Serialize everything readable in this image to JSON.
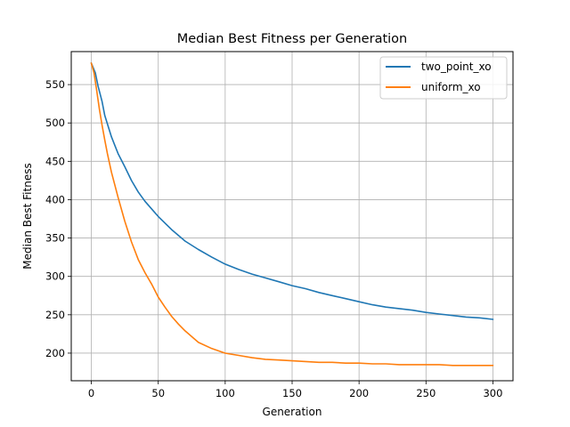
{
  "chart_data": {
    "type": "line",
    "title": "Median Best Fitness per Generation",
    "xlabel": "Generation",
    "ylabel": "Median Best Fitness",
    "xlim": [
      -15,
      315
    ],
    "ylim": [
      164,
      593
    ],
    "xticks": [
      0,
      50,
      100,
      150,
      200,
      250,
      300
    ],
    "yticks": [
      200,
      250,
      300,
      350,
      400,
      450,
      500,
      550
    ],
    "grid": true,
    "legend_position": "top-right",
    "series": [
      {
        "name": "two_point_xo",
        "color": "#1f77b4",
        "x": [
          0,
          3,
          5,
          8,
          10,
          15,
          20,
          25,
          30,
          35,
          40,
          45,
          50,
          60,
          70,
          80,
          90,
          100,
          110,
          120,
          130,
          140,
          150,
          160,
          170,
          180,
          190,
          200,
          210,
          220,
          230,
          240,
          250,
          260,
          270,
          280,
          290,
          300
        ],
        "y": [
          578,
          565,
          548,
          528,
          510,
          482,
          460,
          443,
          425,
          410,
          398,
          388,
          378,
          361,
          346,
          335,
          325,
          316,
          309,
          303,
          298,
          293,
          288,
          284,
          279,
          275,
          271,
          267,
          263,
          260,
          258,
          256,
          253,
          251,
          249,
          247,
          246,
          244
        ]
      },
      {
        "name": "uniform_xo",
        "color": "#ff7f0e",
        "x": [
          0,
          2,
          4,
          6,
          8,
          10,
          12,
          15,
          20,
          25,
          30,
          35,
          40,
          45,
          50,
          55,
          60,
          65,
          70,
          80,
          90,
          100,
          110,
          120,
          130,
          140,
          150,
          160,
          170,
          180,
          190,
          200,
          210,
          220,
          230,
          240,
          250,
          260,
          270,
          280,
          290,
          300
        ],
        "y": [
          578,
          565,
          542,
          518,
          497,
          478,
          460,
          436,
          403,
          372,
          345,
          322,
          305,
          290,
          273,
          260,
          248,
          238,
          229,
          214,
          206,
          200,
          197,
          194,
          192,
          191,
          190,
          189,
          188,
          188,
          187,
          187,
          186,
          186,
          185,
          185,
          185,
          185,
          184,
          184,
          184,
          184
        ]
      }
    ]
  }
}
